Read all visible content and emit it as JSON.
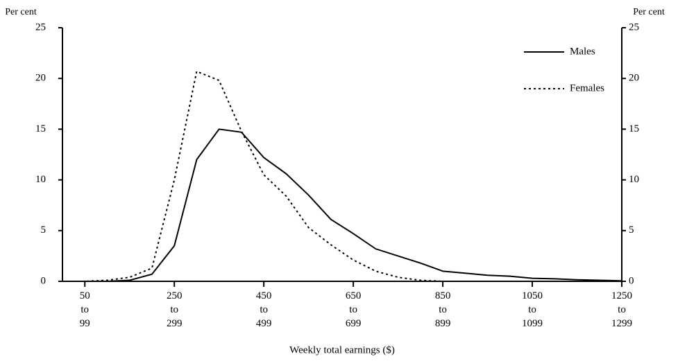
{
  "chart_data": {
    "type": "line",
    "y_label": "Per cent",
    "y2_label": "Per cent",
    "x_label": "Weekly total earnings ($)",
    "categories": [
      null,
      "50 to 99",
      null,
      null,
      null,
      "250 to 299",
      null,
      null,
      null,
      "450 to 499",
      null,
      null,
      null,
      "650 to 699",
      null,
      null,
      null,
      "850 to 899",
      null,
      null,
      null,
      "1050 to 1099",
      null,
      null,
      null,
      "1250 to 1299"
    ],
    "series": [
      {
        "name": "Males",
        "color": "#000000",
        "dash": "solid",
        "values": [
          0,
          0,
          0,
          0.1,
          0.7,
          3.5,
          12,
          15,
          14.7,
          12.2,
          10.6,
          8.5,
          6.1,
          4.7,
          3.2,
          2.5,
          1.8,
          1.0,
          0.8,
          0.6,
          0.5,
          0.3,
          0.25,
          0.15,
          0.1,
          0.05
        ]
      },
      {
        "name": "Females",
        "color": "#000000",
        "dash": "dotted",
        "values": [
          0,
          0,
          0.1,
          0.4,
          1.3,
          10,
          20.7,
          19.8,
          14.8,
          10.5,
          8.4,
          5.3,
          3.6,
          2.1,
          1.0,
          0.4,
          0.1,
          0,
          0,
          0,
          0,
          0,
          0,
          0,
          0,
          0
        ]
      }
    ],
    "ylim": [
      0,
      25
    ],
    "yticks": [
      0,
      5,
      10,
      15,
      20,
      25
    ],
    "y2lim": [
      0,
      25
    ],
    "y2ticks": [
      0,
      5,
      10,
      15,
      20,
      25
    ],
    "legend": "top-right",
    "grid": false
  }
}
